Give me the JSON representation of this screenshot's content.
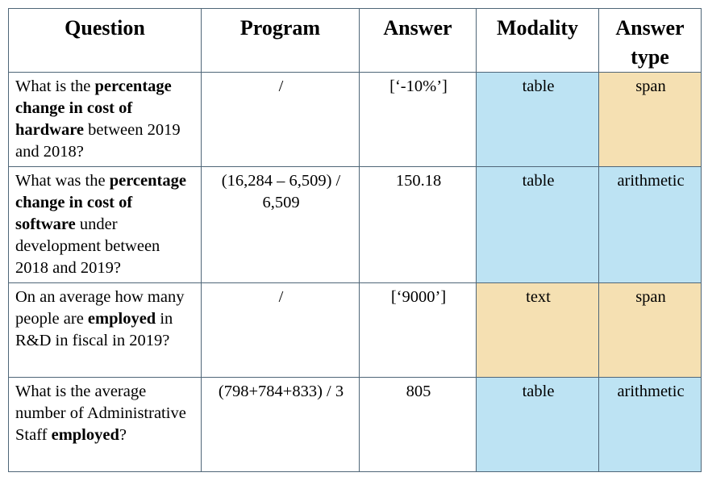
{
  "headers": {
    "question": "Question",
    "program": "Program",
    "answer": "Answer",
    "modality": "Modality",
    "answer_type": "Answer type"
  },
  "colors": {
    "table_modality": "#bde3f3",
    "text_modality": "#f5e0b2",
    "border": "#4f6678"
  },
  "rows": [
    {
      "question": [
        {
          "t": "What is the ",
          "b": false
        },
        {
          "t": "percentage change in cost of hardware",
          "b": true
        },
        {
          "t": " between 2019 and 2018?",
          "b": false
        }
      ],
      "program": "/",
      "answer": "[‘-10%’]",
      "modality": "table",
      "answer_type": "span"
    },
    {
      "question": [
        {
          "t": "What was the ",
          "b": false
        },
        {
          "t": "percentage change in cost of software",
          "b": true
        },
        {
          "t": " under development between 2018 and 2019?",
          "b": false
        }
      ],
      "program": "(16,284 – 6,509) / 6,509",
      "answer": "150.18",
      "modality": "table",
      "answer_type": "arithmetic"
    },
    {
      "question": [
        {
          "t": "On an average how many people are ",
          "b": false
        },
        {
          "t": "employed",
          "b": true
        },
        {
          "t": " in R&D in fiscal in 2019?",
          "b": false
        }
      ],
      "program": "/",
      "answer": "[‘9000’]",
      "modality": "text",
      "answer_type": "span"
    },
    {
      "question": [
        {
          "t": "What is the average number of Administrative Staff ",
          "b": false
        },
        {
          "t": "employed",
          "b": true
        },
        {
          "t": "?",
          "b": false
        }
      ],
      "program": "(798+784+833) / 3",
      "answer": "805",
      "modality": "table",
      "answer_type": "arithmetic"
    }
  ]
}
